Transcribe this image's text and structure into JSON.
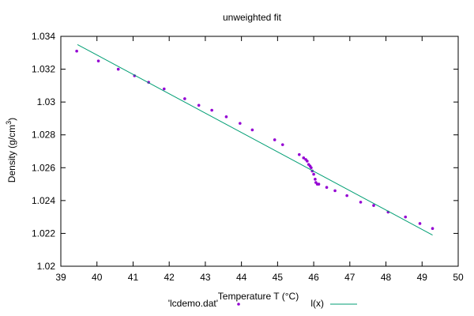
{
  "chart_data": {
    "type": "scatter",
    "title": "unweighted fit",
    "xlabel": "Temperature T (°C)",
    "ylabel": "Density (g/cm",
    "ylabel_sup": "3",
    "ylabel_close": ")",
    "xlim": [
      39,
      50
    ],
    "ylim": [
      1.02,
      1.034
    ],
    "xticks": [
      "39",
      "40",
      "41",
      "42",
      "43",
      "44",
      "45",
      "46",
      "47",
      "48",
      "49",
      "50"
    ],
    "yticks": [
      "1.02",
      "1.022",
      "1.024",
      "1.026",
      "1.028",
      "1.03",
      "1.032",
      "1.034"
    ],
    "legend_placement": "bottom",
    "series": [
      {
        "name": "'lcdemo.dat'",
        "kind": "points",
        "color": "#9400d3",
        "x": [
          39.44,
          40.04,
          40.59,
          41.04,
          41.43,
          41.86,
          42.43,
          42.82,
          43.18,
          43.58,
          43.96,
          44.3,
          44.92,
          45.14,
          45.6,
          45.72,
          45.78,
          45.82,
          45.86,
          45.9,
          45.93,
          45.96,
          46.0,
          46.04,
          46.06,
          46.1,
          46.14,
          46.36,
          46.59,
          46.92,
          47.3,
          47.66,
          48.06,
          48.54,
          48.94,
          49.29
        ],
        "y": [
          1.0331,
          1.0325,
          1.032,
          1.0316,
          1.0312,
          1.0308,
          1.0302,
          1.0298,
          1.0295,
          1.0291,
          1.0287,
          1.0283,
          1.0277,
          1.0274,
          1.0268,
          1.0266,
          1.0265,
          1.0264,
          1.0262,
          1.0261,
          1.026,
          1.0258,
          1.0256,
          1.0253,
          1.0251,
          1.025,
          1.025,
          1.0248,
          1.0246,
          1.0243,
          1.0239,
          1.0237,
          1.0233,
          1.023,
          1.0226,
          1.0223
        ]
      },
      {
        "name": "l(x)",
        "kind": "line",
        "color": "#009e73",
        "x": [
          39.46,
          49.29
        ],
        "y": [
          1.0335,
          1.0219
        ]
      }
    ]
  }
}
